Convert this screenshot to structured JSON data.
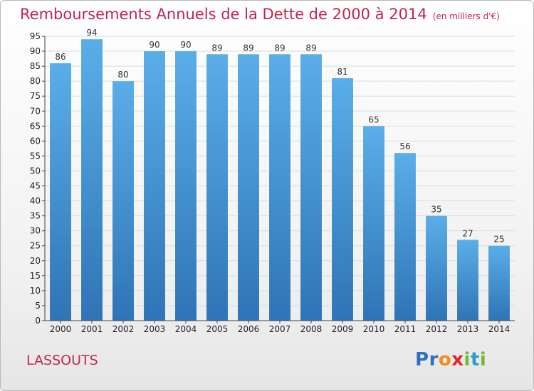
{
  "title": "Remboursements Annuels de la Dette de 2000 à 2014",
  "unit": "(en milliers d'€)",
  "commune": "LASSOUTS",
  "logo": {
    "letters": [
      "P",
      "r",
      "o",
      "x",
      "i",
      "t",
      "i"
    ],
    "colors": [
      "#2f6fc0",
      "#2f6fc0",
      "#f28c1e",
      "#e0262b",
      "#7cb82f",
      "#2a9bd6",
      "#7cb82f"
    ]
  },
  "colors": {
    "accent": "#c2264f",
    "bar_top": "#5aaee8",
    "bar_bottom": "#2f74b6"
  },
  "chart_data": {
    "type": "bar",
    "categories": [
      "2000",
      "2001",
      "2002",
      "2003",
      "2004",
      "2005",
      "2006",
      "2007",
      "2008",
      "2009",
      "2010",
      "2011",
      "2012",
      "2013",
      "2014"
    ],
    "values": [
      86,
      94,
      80,
      90,
      90,
      89,
      89,
      89,
      89,
      81,
      65,
      56,
      35,
      27,
      25
    ],
    "ylim": [
      0,
      95
    ],
    "yticks": [
      0,
      5,
      10,
      15,
      20,
      25,
      30,
      35,
      40,
      45,
      50,
      55,
      60,
      65,
      70,
      75,
      80,
      85,
      90,
      95
    ],
    "grid": true,
    "legend": "none"
  }
}
